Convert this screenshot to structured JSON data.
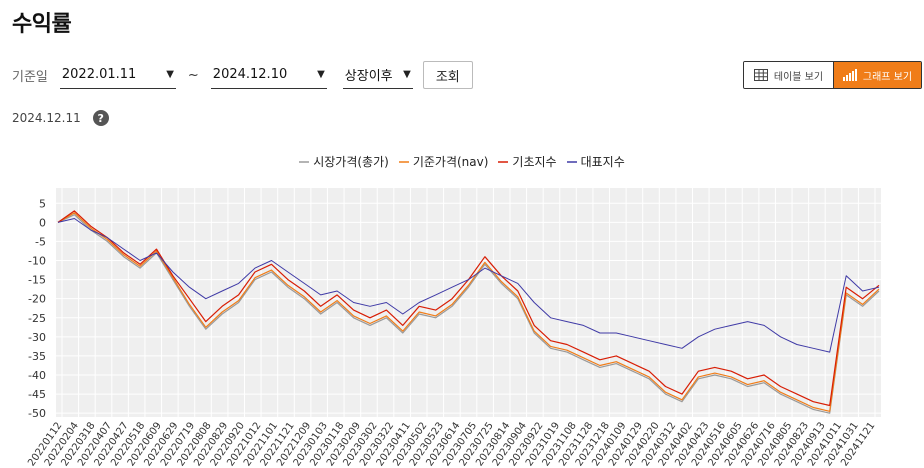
{
  "page": {
    "title": "수익률"
  },
  "filter": {
    "label": "기준일",
    "start_date": "2022.01.11",
    "tilde": "~",
    "end_date": "2024.12.10",
    "listing": "상장이후",
    "query_label": "조회"
  },
  "view_toggle": {
    "table_label": "테이블 보기",
    "graph_label": "그래프 보기"
  },
  "as_of": "2024.12.11",
  "help": "?",
  "colors": {
    "market": "#9a9a9a",
    "nav": "#f07d19",
    "base_index": "#d81e05",
    "rep_index": "#3f3aa6"
  },
  "chart_data": {
    "type": "line",
    "title": "",
    "xlabel": "",
    "ylabel": "",
    "ylim": [
      -51,
      9
    ],
    "yticks": [
      5,
      0,
      -5,
      -10,
      -15,
      -20,
      -25,
      -30,
      -35,
      -40,
      -45,
      -50
    ],
    "grid": true,
    "legend_position": "top-center",
    "x_ticks": [
      "20220112",
      "20220204",
      "20220318",
      "20220407",
      "20220427",
      "20220518",
      "20220609",
      "20220629",
      "20220719",
      "20220808",
      "20220829",
      "20220920",
      "20221012",
      "20221101",
      "20221121",
      "20221209",
      "20230103",
      "20230118",
      "20230209",
      "20230302",
      "20230322",
      "20230411",
      "20230502",
      "20230523",
      "20230614",
      "20230705",
      "20230725",
      "20230814",
      "20230904",
      "20230922",
      "20231019",
      "20231108",
      "20231128",
      "20231218",
      "20240109",
      "20240129",
      "20240220",
      "20240312",
      "20240402",
      "20240423",
      "20240516",
      "20240605",
      "20240626",
      "20240716",
      "20240805",
      "20240823",
      "20240913",
      "20241011",
      "20241031",
      "20241121"
    ],
    "series": [
      {
        "name": "시장가격(총가)",
        "color": "#9a9a9a",
        "values": [
          0,
          2,
          -2,
          -5,
          -9,
          -12,
          -8,
          -15,
          -22,
          -28,
          -24,
          -21,
          -15,
          -13,
          -17,
          -20,
          -24,
          -21,
          -25,
          -27,
          -25,
          -29,
          -24,
          -25,
          -22,
          -17,
          -11,
          -16,
          -20,
          -29,
          -33,
          -34,
          -36,
          -38,
          -37,
          -39,
          -41,
          -45,
          -47,
          -41,
          -40,
          -41,
          -43,
          -42,
          -45,
          -47,
          -49,
          -50,
          -19,
          -22,
          -18
        ]
      },
      {
        "name": "기준가격(nav)",
        "color": "#f07d19",
        "values": [
          0,
          2.5,
          -1.5,
          -4.5,
          -8.5,
          -11.5,
          -7.5,
          -14.5,
          -21.5,
          -27.5,
          -23.5,
          -20.5,
          -14.5,
          -12.5,
          -16.5,
          -19.5,
          -23.5,
          -20.5,
          -24.5,
          -26.5,
          -24.5,
          -28.5,
          -23.5,
          -24.5,
          -21.5,
          -16.5,
          -10.5,
          -15.5,
          -19.5,
          -28.5,
          -32.5,
          -33.5,
          -35.5,
          -37.5,
          -36.5,
          -38.5,
          -40.5,
          -44.5,
          -46.5,
          -40.5,
          -39.5,
          -40.5,
          -42.5,
          -41.5,
          -44.5,
          -46.5,
          -48.5,
          -49.5,
          -18.5,
          -21.5,
          -17.5
        ]
      },
      {
        "name": "기초지수",
        "color": "#d81e05",
        "values": [
          0,
          3,
          -1,
          -4,
          -8,
          -11,
          -7,
          -14,
          -20,
          -26,
          -22,
          -19,
          -13,
          -11,
          -15,
          -18,
          -22,
          -19,
          -23,
          -25,
          -23,
          -27,
          -22,
          -23,
          -20,
          -15,
          -9,
          -14,
          -18,
          -27,
          -31,
          -32,
          -34,
          -36,
          -35,
          -37,
          -39,
          -43,
          -45,
          -39,
          -38,
          -39,
          -41,
          -40,
          -43,
          -45,
          -47,
          -48,
          -17,
          -20,
          -16.5
        ]
      },
      {
        "name": "대표지수",
        "color": "#3f3aa6",
        "values": [
          0,
          1,
          -2,
          -4,
          -7,
          -10,
          -8,
          -13,
          -17,
          -20,
          -18,
          -16,
          -12,
          -10,
          -13,
          -16,
          -19,
          -18,
          -21,
          -22,
          -21,
          -24,
          -21,
          -19,
          -17,
          -15,
          -12,
          -14,
          -16,
          -21,
          -25,
          -26,
          -27,
          -29,
          -29,
          -30,
          -31,
          -32,
          -33,
          -30,
          -28,
          -27,
          -26,
          -27,
          -30,
          -32,
          -33,
          -34,
          -14,
          -18,
          -17
        ]
      }
    ]
  }
}
